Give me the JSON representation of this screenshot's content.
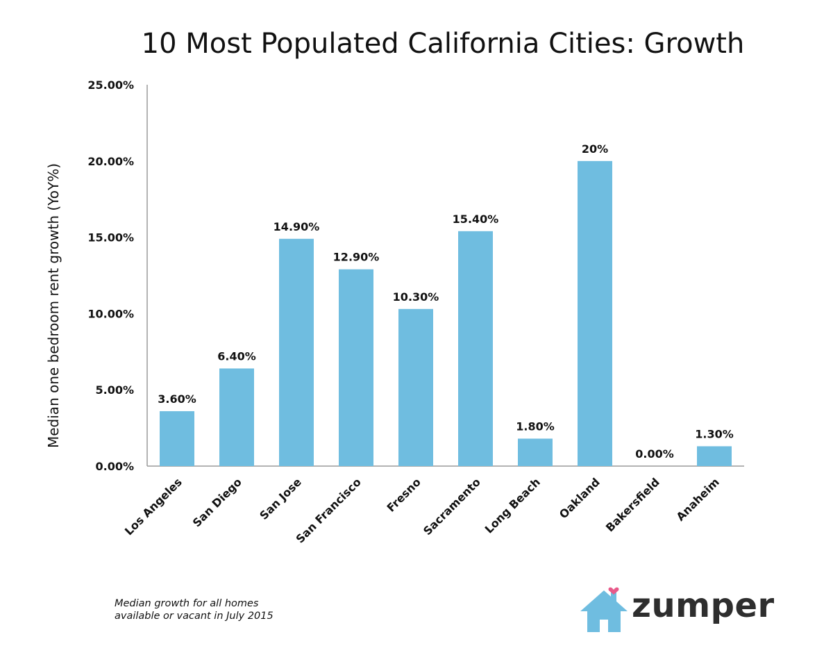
{
  "chart_data": {
    "type": "bar",
    "title": "10 Most Populated California Cities: Growth",
    "ylabel": "Median one bedroom rent growth (YoY%)",
    "xlabel": "",
    "categories": [
      "Los Angeles",
      "San Diego",
      "San Jose",
      "San Francisco",
      "Fresno",
      "Sacramento",
      "Long Beach",
      "Oakland",
      "Bakersfield",
      "Anaheim"
    ],
    "values": [
      3.6,
      6.4,
      14.9,
      12.9,
      10.3,
      15.4,
      1.8,
      20,
      0,
      1.3
    ],
    "data_labels": [
      "3.60%",
      "6.40%",
      "14.90%",
      "12.90%",
      "10.30%",
      "15.40%",
      "1.80%",
      "20%",
      "0.00%",
      "1.30%"
    ],
    "ylim": [
      0,
      25
    ],
    "yticks": [
      "0.00%",
      "5.00%",
      "10.00%",
      "15.00%",
      "20.00%",
      "25.00%"
    ],
    "bar_color": "#6fbde0",
    "grid": false,
    "legend": "none"
  },
  "footnote": {
    "line1": "Median growth for all homes",
    "line2": "available or vacant in July 2015"
  },
  "brand": {
    "name": "zumper",
    "icon": "house-heart-icon",
    "icon_color": "#6fbde0",
    "heart_color": "#e85a8a"
  }
}
